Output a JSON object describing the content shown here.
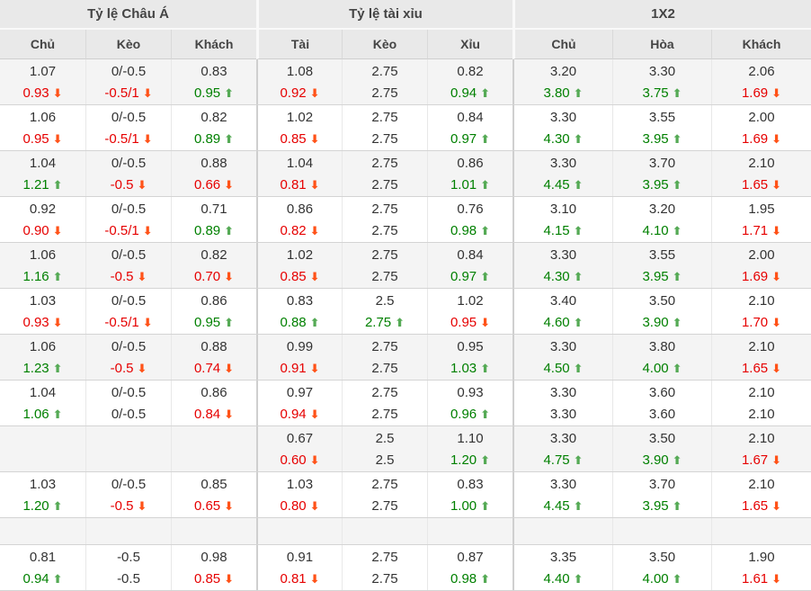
{
  "colors": {
    "header_bg": "#e9e9e9",
    "row_alt_bg": "#f4f4f4",
    "row_bg": "#ffffff",
    "text_dark": "#333333",
    "text_red": "#e60000",
    "text_green": "#008000",
    "arrow_down": "#ff5218",
    "arrow_up": "#55aa55"
  },
  "glyphs": {
    "up": "⬆",
    "down": "⬇"
  },
  "table": {
    "sections": [
      {
        "title": "Tỷ lệ Châu Á",
        "cols": [
          "Chủ",
          "Kèo",
          "Khách"
        ]
      },
      {
        "title": "Tỷ lệ tài xỉu",
        "cols": [
          "Tài",
          "Kèo",
          "Xỉu"
        ]
      },
      {
        "title": "1X2",
        "cols": [
          "Chủ",
          "Hòa",
          "Khách"
        ]
      }
    ],
    "rows": [
      {
        "cells": [
          {
            "t": "1.07",
            "b": "0.93",
            "c": "red",
            "a": "down"
          },
          {
            "t": "0/-0.5",
            "b": "-0.5/1",
            "c": "red",
            "a": "down"
          },
          {
            "t": "0.83",
            "b": "0.95",
            "c": "green",
            "a": "up"
          },
          {
            "t": "1.08",
            "b": "0.92",
            "c": "red",
            "a": "down"
          },
          {
            "t": "2.75",
            "b": "2.75",
            "c": "black"
          },
          {
            "t": "0.82",
            "b": "0.94",
            "c": "green",
            "a": "up"
          },
          {
            "t": "3.20",
            "b": "3.80",
            "c": "green",
            "a": "up"
          },
          {
            "t": "3.30",
            "b": "3.75",
            "c": "green",
            "a": "up"
          },
          {
            "t": "2.06",
            "b": "1.69",
            "c": "red",
            "a": "down"
          }
        ]
      },
      {
        "cells": [
          {
            "t": "1.06",
            "b": "0.95",
            "c": "red",
            "a": "down"
          },
          {
            "t": "0/-0.5",
            "b": "-0.5/1",
            "c": "red",
            "a": "down"
          },
          {
            "t": "0.82",
            "b": "0.89",
            "c": "green",
            "a": "up"
          },
          {
            "t": "1.02",
            "b": "0.85",
            "c": "red",
            "a": "down"
          },
          {
            "t": "2.75",
            "b": "2.75",
            "c": "black"
          },
          {
            "t": "0.84",
            "b": "0.97",
            "c": "green",
            "a": "up"
          },
          {
            "t": "3.30",
            "b": "4.30",
            "c": "green",
            "a": "up"
          },
          {
            "t": "3.55",
            "b": "3.95",
            "c": "green",
            "a": "up"
          },
          {
            "t": "2.00",
            "b": "1.69",
            "c": "red",
            "a": "down"
          }
        ]
      },
      {
        "cells": [
          {
            "t": "1.04",
            "b": "1.21",
            "c": "green",
            "a": "up"
          },
          {
            "t": "0/-0.5",
            "b": "-0.5",
            "c": "red",
            "a": "down"
          },
          {
            "t": "0.88",
            "b": "0.66",
            "c": "red",
            "a": "down"
          },
          {
            "t": "1.04",
            "b": "0.81",
            "c": "red",
            "a": "down"
          },
          {
            "t": "2.75",
            "b": "2.75",
            "c": "black"
          },
          {
            "t": "0.86",
            "b": "1.01",
            "c": "green",
            "a": "up"
          },
          {
            "t": "3.30",
            "b": "4.45",
            "c": "green",
            "a": "up"
          },
          {
            "t": "3.70",
            "b": "3.95",
            "c": "green",
            "a": "up"
          },
          {
            "t": "2.10",
            "b": "1.65",
            "c": "red",
            "a": "down"
          }
        ]
      },
      {
        "cells": [
          {
            "t": "0.92",
            "b": "0.90",
            "c": "red",
            "a": "down"
          },
          {
            "t": "0/-0.5",
            "b": "-0.5/1",
            "c": "red",
            "a": "down"
          },
          {
            "t": "0.71",
            "b": "0.89",
            "c": "green",
            "a": "up"
          },
          {
            "t": "0.86",
            "b": "0.82",
            "c": "red",
            "a": "down"
          },
          {
            "t": "2.75",
            "b": "2.75",
            "c": "black"
          },
          {
            "t": "0.76",
            "b": "0.98",
            "c": "green",
            "a": "up"
          },
          {
            "t": "3.10",
            "b": "4.15",
            "c": "green",
            "a": "up"
          },
          {
            "t": "3.20",
            "b": "4.10",
            "c": "green",
            "a": "up"
          },
          {
            "t": "1.95",
            "b": "1.71",
            "c": "red",
            "a": "down"
          }
        ]
      },
      {
        "cells": [
          {
            "t": "1.06",
            "b": "1.16",
            "c": "green",
            "a": "up"
          },
          {
            "t": "0/-0.5",
            "b": "-0.5",
            "c": "red",
            "a": "down"
          },
          {
            "t": "0.82",
            "b": "0.70",
            "c": "red",
            "a": "down"
          },
          {
            "t": "1.02",
            "b": "0.85",
            "c": "red",
            "a": "down"
          },
          {
            "t": "2.75",
            "b": "2.75",
            "c": "black"
          },
          {
            "t": "0.84",
            "b": "0.97",
            "c": "green",
            "a": "up"
          },
          {
            "t": "3.30",
            "b": "4.30",
            "c": "green",
            "a": "up"
          },
          {
            "t": "3.55",
            "b": "3.95",
            "c": "green",
            "a": "up"
          },
          {
            "t": "2.00",
            "b": "1.69",
            "c": "red",
            "a": "down"
          }
        ]
      },
      {
        "cells": [
          {
            "t": "1.03",
            "b": "0.93",
            "c": "red",
            "a": "down"
          },
          {
            "t": "0/-0.5",
            "b": "-0.5/1",
            "c": "red",
            "a": "down"
          },
          {
            "t": "0.86",
            "b": "0.95",
            "c": "green",
            "a": "up"
          },
          {
            "t": "0.83",
            "b": "0.88",
            "c": "green",
            "a": "up"
          },
          {
            "t": "2.5",
            "b": "2.75",
            "c": "green",
            "a": "up"
          },
          {
            "t": "1.02",
            "b": "0.95",
            "c": "red",
            "a": "down"
          },
          {
            "t": "3.40",
            "b": "4.60",
            "c": "green",
            "a": "up"
          },
          {
            "t": "3.50",
            "b": "3.90",
            "c": "green",
            "a": "up"
          },
          {
            "t": "2.10",
            "b": "1.70",
            "c": "red",
            "a": "down"
          }
        ]
      },
      {
        "cells": [
          {
            "t": "1.06",
            "b": "1.23",
            "c": "green",
            "a": "up"
          },
          {
            "t": "0/-0.5",
            "b": "-0.5",
            "c": "red",
            "a": "down"
          },
          {
            "t": "0.88",
            "b": "0.74",
            "c": "red",
            "a": "down"
          },
          {
            "t": "0.99",
            "b": "0.91",
            "c": "red",
            "a": "down"
          },
          {
            "t": "2.75",
            "b": "2.75",
            "c": "black"
          },
          {
            "t": "0.95",
            "b": "1.03",
            "c": "green",
            "a": "up"
          },
          {
            "t": "3.30",
            "b": "4.50",
            "c": "green",
            "a": "up"
          },
          {
            "t": "3.80",
            "b": "4.00",
            "c": "green",
            "a": "up"
          },
          {
            "t": "2.10",
            "b": "1.65",
            "c": "red",
            "a": "down"
          }
        ]
      },
      {
        "cells": [
          {
            "t": "1.04",
            "b": "1.06",
            "c": "green",
            "a": "up"
          },
          {
            "t": "0/-0.5",
            "b": "0/-0.5",
            "c": "black"
          },
          {
            "t": "0.86",
            "b": "0.84",
            "c": "red",
            "a": "down"
          },
          {
            "t": "0.97",
            "b": "0.94",
            "c": "red",
            "a": "down"
          },
          {
            "t": "2.75",
            "b": "2.75",
            "c": "black"
          },
          {
            "t": "0.93",
            "b": "0.96",
            "c": "green",
            "a": "up"
          },
          {
            "t": "3.30",
            "b": "3.30",
            "c": "black"
          },
          {
            "t": "3.60",
            "b": "3.60",
            "c": "black"
          },
          {
            "t": "2.10",
            "b": "2.10",
            "c": "black"
          }
        ]
      },
      {
        "cells": [
          {},
          {},
          {},
          {
            "t": "0.67",
            "b": "0.60",
            "c": "red",
            "a": "down"
          },
          {
            "t": "2.5",
            "b": "2.5",
            "c": "black"
          },
          {
            "t": "1.10",
            "b": "1.20",
            "c": "green",
            "a": "up"
          },
          {
            "t": "3.30",
            "b": "4.75",
            "c": "green",
            "a": "up"
          },
          {
            "t": "3.50",
            "b": "3.90",
            "c": "green",
            "a": "up"
          },
          {
            "t": "2.10",
            "b": "1.67",
            "c": "red",
            "a": "down"
          }
        ]
      },
      {
        "cells": [
          {
            "t": "1.03",
            "b": "1.20",
            "c": "green",
            "a": "up"
          },
          {
            "t": "0/-0.5",
            "b": "-0.5",
            "c": "red",
            "a": "down"
          },
          {
            "t": "0.85",
            "b": "0.65",
            "c": "red",
            "a": "down"
          },
          {
            "t": "1.03",
            "b": "0.80",
            "c": "red",
            "a": "down"
          },
          {
            "t": "2.75",
            "b": "2.75",
            "c": "black"
          },
          {
            "t": "0.83",
            "b": "1.00",
            "c": "green",
            "a": "up"
          },
          {
            "t": "3.30",
            "b": "4.45",
            "c": "green",
            "a": "up"
          },
          {
            "t": "3.70",
            "b": "3.95",
            "c": "green",
            "a": "up"
          },
          {
            "t": "2.10",
            "b": "1.65",
            "c": "red",
            "a": "down"
          }
        ]
      },
      {
        "short": true,
        "cells": [
          {},
          {},
          {},
          {},
          {},
          {},
          {},
          {},
          {}
        ]
      },
      {
        "cells": [
          {
            "t": "0.81",
            "b": "0.94",
            "c": "green",
            "a": "up"
          },
          {
            "t": "-0.5",
            "b": "-0.5",
            "c": "black"
          },
          {
            "t": "0.98",
            "b": "0.85",
            "c": "red",
            "a": "down"
          },
          {
            "t": "0.91",
            "b": "0.81",
            "c": "red",
            "a": "down"
          },
          {
            "t": "2.75",
            "b": "2.75",
            "c": "black"
          },
          {
            "t": "0.87",
            "b": "0.98",
            "c": "green",
            "a": "up"
          },
          {
            "t": "3.35",
            "b": "4.40",
            "c": "green",
            "a": "up"
          },
          {
            "t": "3.50",
            "b": "4.00",
            "c": "green",
            "a": "up"
          },
          {
            "t": "1.90",
            "b": "1.61",
            "c": "red",
            "a": "down"
          }
        ]
      }
    ]
  }
}
